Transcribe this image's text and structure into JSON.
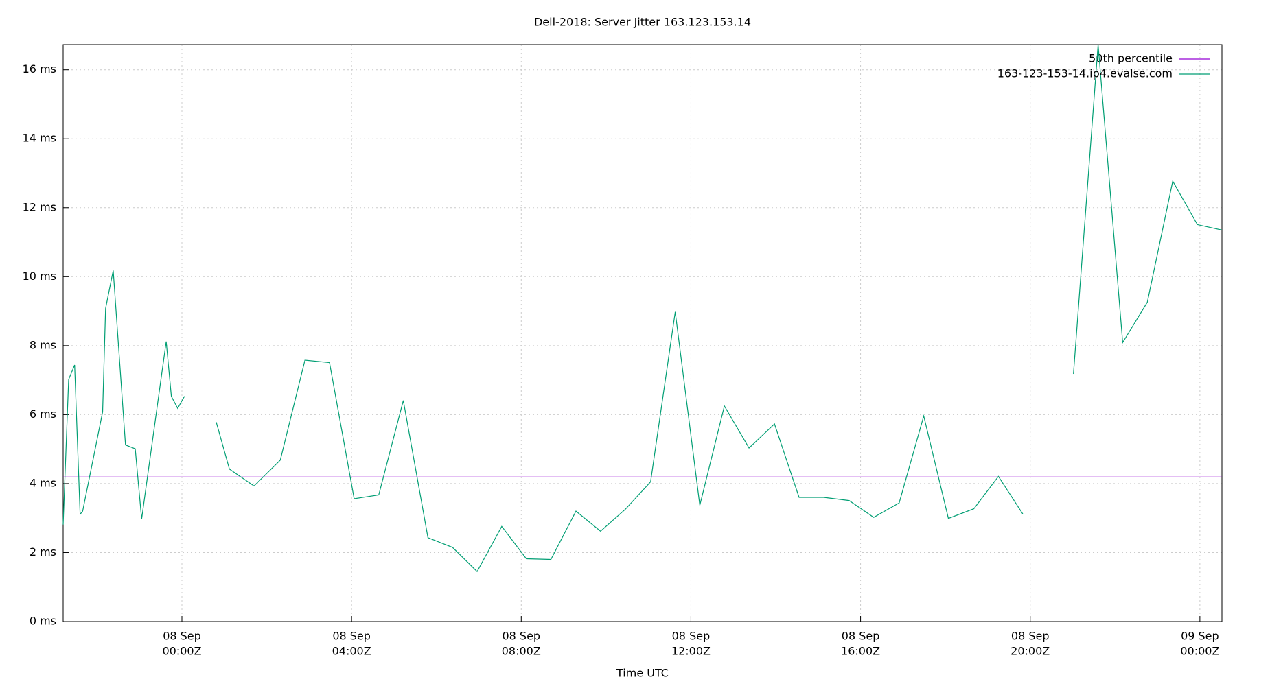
{
  "chart_data": {
    "type": "line",
    "title": "Dell-2018: Server Jitter 163.123.153.14",
    "x_label": "Time UTC",
    "xlim": [
      -2.8,
      24.52
    ],
    "ylim": [
      0,
      16.73
    ],
    "xticks": [
      {
        "value": 0,
        "label": [
          "08 Sep",
          "00:00Z"
        ]
      },
      {
        "value": 4,
        "label": [
          "08 Sep",
          "04:00Z"
        ]
      },
      {
        "value": 8,
        "label": [
          "08 Sep",
          "08:00Z"
        ]
      },
      {
        "value": 12,
        "label": [
          "08 Sep",
          "12:00Z"
        ]
      },
      {
        "value": 16,
        "label": [
          "08 Sep",
          "16:00Z"
        ]
      },
      {
        "value": 20,
        "label": [
          "08 Sep",
          "20:00Z"
        ]
      },
      {
        "value": 24,
        "label": [
          "09 Sep",
          "00:00Z"
        ]
      }
    ],
    "yticks": [
      {
        "value": 0,
        "label": "0 ms"
      },
      {
        "value": 2,
        "label": "2 ms"
      },
      {
        "value": 4,
        "label": "4 ms"
      },
      {
        "value": 6,
        "label": "6 ms"
      },
      {
        "value": 8,
        "label": "8 ms"
      },
      {
        "value": 10,
        "label": "10 ms"
      },
      {
        "value": 12,
        "label": "12 ms"
      },
      {
        "value": 14,
        "label": "14 ms"
      },
      {
        "value": 16,
        "label": "16 ms"
      }
    ],
    "grid": true,
    "legend": "top-right",
    "hlines": [
      {
        "name": "50th percentile",
        "color": "#9400d3",
        "value": 4.19
      }
    ],
    "x": [
      -2.8,
      -2.67,
      -2.53,
      -2.4,
      -2.34,
      -1.87,
      -1.8,
      -1.62,
      -1.33,
      -1.1,
      -0.95,
      -0.37,
      -0.25,
      -0.1,
      0.06,
      null,
      0.81,
      1.12,
      1.7,
      2.32,
      2.9,
      3.48,
      4.06,
      4.64,
      5.22,
      5.8,
      6.38,
      6.96,
      7.54,
      8.12,
      8.7,
      9.29,
      9.87,
      10.45,
      11.05,
      11.63,
      12.21,
      12.79,
      13.37,
      13.97,
      14.55,
      15.13,
      15.73,
      16.31,
      16.91,
      17.49,
      18.07,
      18.67,
      19.25,
      19.83,
      null,
      21.02,
      21.6,
      22.18,
      22.76,
      23.36,
      23.94,
      24.52
    ],
    "series": [
      {
        "name": "163-123-153-14.ip4.evalse.com",
        "color": "#009e73",
        "values": [
          2.81,
          7.02,
          7.44,
          3.11,
          3.2,
          6.08,
          9.08,
          10.18,
          5.12,
          5.01,
          2.97,
          8.12,
          6.53,
          6.18,
          6.53,
          null,
          5.78,
          4.42,
          3.93,
          4.68,
          7.58,
          7.51,
          3.56,
          3.67,
          6.41,
          2.43,
          2.15,
          1.45,
          2.76,
          1.82,
          1.8,
          3.2,
          2.62,
          3.25,
          4.05,
          8.98,
          3.37,
          6.25,
          5.03,
          5.73,
          3.6,
          3.6,
          3.51,
          3.02,
          3.44,
          5.96,
          2.99,
          3.27,
          4.21,
          3.11,
          null,
          7.18,
          16.73,
          8.09,
          9.26,
          12.77,
          11.51,
          11.35
        ]
      }
    ]
  }
}
